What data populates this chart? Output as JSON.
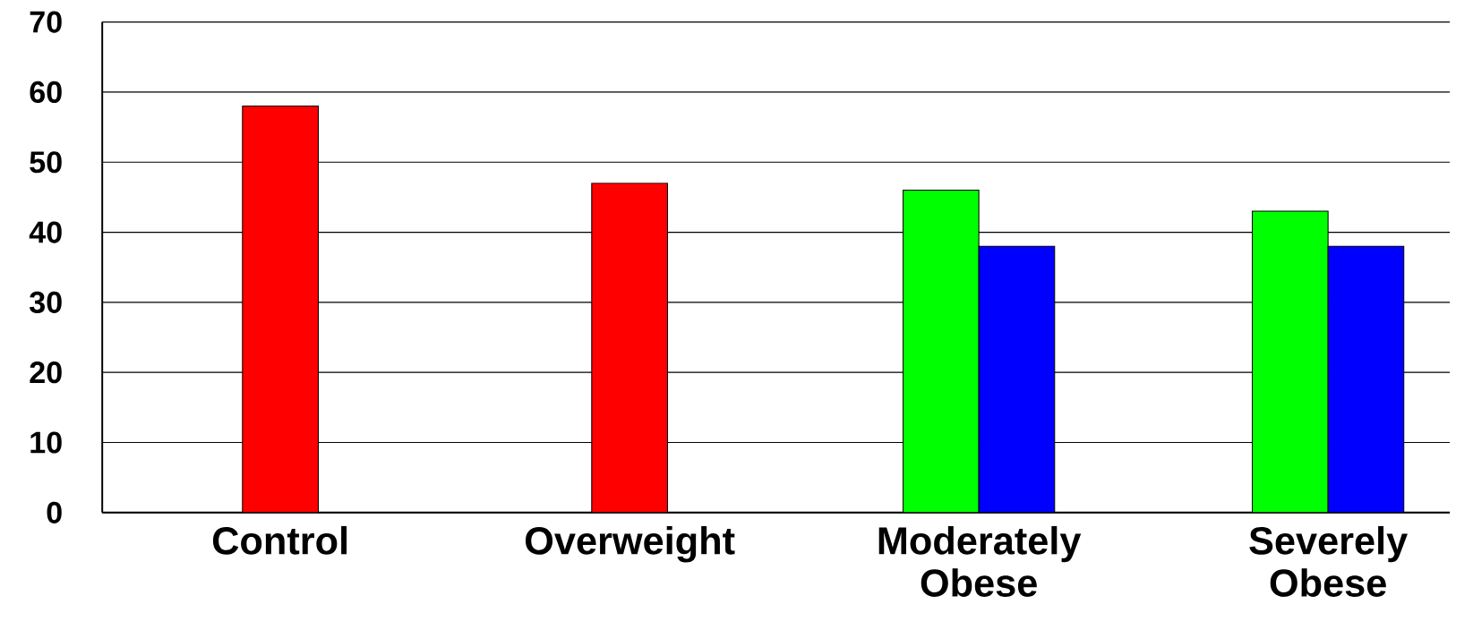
{
  "chart_data": {
    "type": "bar",
    "categories": [
      "Control",
      "Overweight",
      "Moderately Obese",
      "Severely Obese"
    ],
    "series": [
      {
        "color": "#ff0000",
        "values": [
          58,
          47,
          null,
          null
        ]
      },
      {
        "color": "#00ff00",
        "values": [
          null,
          null,
          46,
          43
        ]
      },
      {
        "color": "#0000ff",
        "values": [
          null,
          null,
          38,
          38
        ]
      }
    ],
    "ylim": [
      0,
      70
    ],
    "yticks": [
      0,
      10,
      20,
      30,
      40,
      50,
      60,
      70
    ],
    "grid": "y"
  }
}
